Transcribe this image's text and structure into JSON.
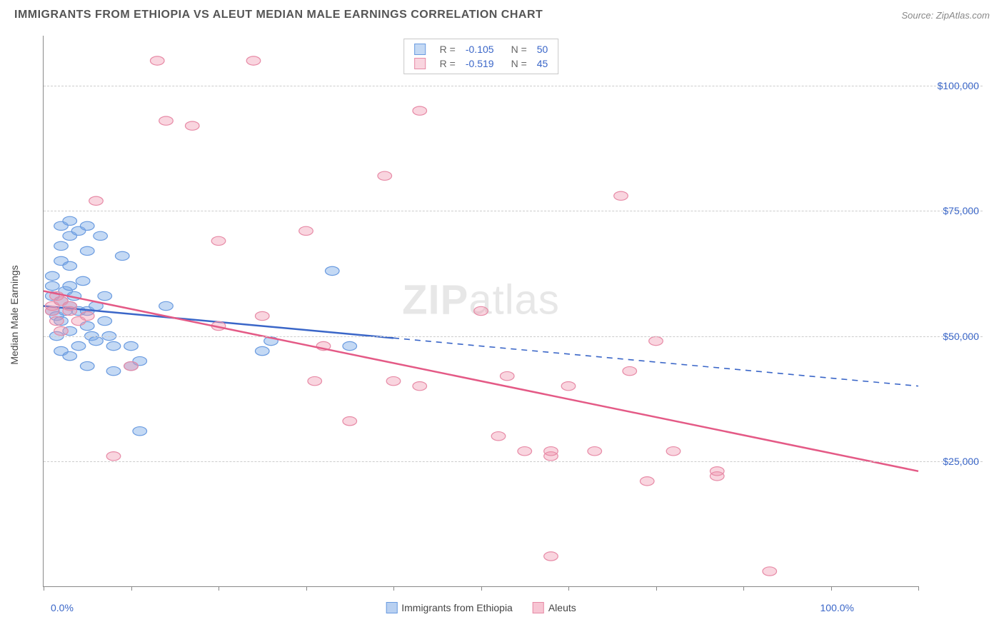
{
  "header": {
    "title": "IMMIGRANTS FROM ETHIOPIA VS ALEUT MEDIAN MALE EARNINGS CORRELATION CHART",
    "source_label": "Source: ",
    "source_name": "ZipAtlas.com"
  },
  "chart": {
    "type": "scatter",
    "ylabel": "Median Male Earnings",
    "xaxis": {
      "min": 0,
      "max": 100,
      "left_label": "0.0%",
      "right_label": "100.0%",
      "tick_positions": [
        0,
        10,
        20,
        30,
        40,
        50,
        60,
        70,
        80,
        90,
        100
      ]
    },
    "yaxis": {
      "min": 0,
      "max": 110000,
      "ticks": [
        {
          "value": 25000,
          "label": "$25,000"
        },
        {
          "value": 50000,
          "label": "$50,000"
        },
        {
          "value": 75000,
          "label": "$75,000"
        },
        {
          "value": 100000,
          "label": "$100,000"
        }
      ]
    },
    "grid_color": "#cccccc",
    "background_color": "#ffffff",
    "marker_radius": 8,
    "series": [
      {
        "name": "Immigrants from Ethiopia",
        "color_fill": "rgba(125,170,230,0.45)",
        "color_stroke": "#6a9be0",
        "line_color": "#3a66c8",
        "line_solid_until_x": 40,
        "R": "-0.105",
        "N": "50",
        "trend": {
          "y_at_x0": 56000,
          "y_at_x100": 40000
        },
        "points": [
          [
            1,
            55000
          ],
          [
            1,
            58000
          ],
          [
            1,
            60000
          ],
          [
            1,
            62000
          ],
          [
            1.5,
            54000
          ],
          [
            1.5,
            50000
          ],
          [
            2,
            72000
          ],
          [
            2,
            68000
          ],
          [
            2,
            65000
          ],
          [
            2,
            57000
          ],
          [
            2,
            53000
          ],
          [
            2,
            47000
          ],
          [
            2.5,
            55000
          ],
          [
            2.5,
            59000
          ],
          [
            3,
            73000
          ],
          [
            3,
            70000
          ],
          [
            3,
            64000
          ],
          [
            3,
            60000
          ],
          [
            3,
            56000
          ],
          [
            3,
            51000
          ],
          [
            3,
            46000
          ],
          [
            3.5,
            58000
          ],
          [
            4,
            71000
          ],
          [
            4,
            55000
          ],
          [
            4,
            48000
          ],
          [
            4.5,
            61000
          ],
          [
            5,
            72000
          ],
          [
            5,
            67000
          ],
          [
            5,
            55000
          ],
          [
            5,
            52000
          ],
          [
            5,
            44000
          ],
          [
            5.5,
            50000
          ],
          [
            6,
            56000
          ],
          [
            6,
            49000
          ],
          [
            6.5,
            70000
          ],
          [
            7,
            53000
          ],
          [
            7,
            58000
          ],
          [
            7.5,
            50000
          ],
          [
            8,
            48000
          ],
          [
            8,
            43000
          ],
          [
            9,
            66000
          ],
          [
            10,
            44000
          ],
          [
            10,
            48000
          ],
          [
            11,
            31000
          ],
          [
            11,
            45000
          ],
          [
            14,
            56000
          ],
          [
            25,
            47000
          ],
          [
            26,
            49000
          ],
          [
            33,
            63000
          ],
          [
            35,
            48000
          ]
        ]
      },
      {
        "name": "Aleuts",
        "color_fill": "rgba(240,150,175,0.40)",
        "color_stroke": "#e78aa6",
        "line_color": "#e45a86",
        "line_solid_until_x": 100,
        "R": "-0.519",
        "N": "45",
        "trend": {
          "y_at_x0": 59000,
          "y_at_x100": 23000
        },
        "points": [
          [
            1,
            55000
          ],
          [
            1,
            56000
          ],
          [
            1.5,
            58000
          ],
          [
            1.5,
            53000
          ],
          [
            2,
            57000
          ],
          [
            2,
            51000
          ],
          [
            3,
            56000
          ],
          [
            3,
            55000
          ],
          [
            4,
            53000
          ],
          [
            5,
            54000
          ],
          [
            6,
            77000
          ],
          [
            8,
            26000
          ],
          [
            10,
            44000
          ],
          [
            13,
            105000
          ],
          [
            14,
            93000
          ],
          [
            17,
            92000
          ],
          [
            20,
            69000
          ],
          [
            20,
            52000
          ],
          [
            24,
            105000
          ],
          [
            25,
            54000
          ],
          [
            30,
            71000
          ],
          [
            31,
            41000
          ],
          [
            32,
            48000
          ],
          [
            35,
            33000
          ],
          [
            39,
            82000
          ],
          [
            40,
            41000
          ],
          [
            43,
            95000
          ],
          [
            43,
            40000
          ],
          [
            50,
            55000
          ],
          [
            52,
            30000
          ],
          [
            53,
            42000
          ],
          [
            55,
            27000
          ],
          [
            58,
            26000
          ],
          [
            58,
            27000
          ],
          [
            60,
            40000
          ],
          [
            63,
            27000
          ],
          [
            66,
            78000
          ],
          [
            67,
            43000
          ],
          [
            69,
            21000
          ],
          [
            70,
            49000
          ],
          [
            72,
            27000
          ],
          [
            77,
            22000
          ],
          [
            77,
            23000
          ],
          [
            58,
            6000
          ],
          [
            83,
            3000
          ]
        ]
      }
    ],
    "bottom_legend": [
      {
        "label": "Immigrants from Ethiopia",
        "fill": "rgba(125,170,230,0.55)",
        "stroke": "#6a9be0"
      },
      {
        "label": "Aleuts",
        "fill": "rgba(240,150,175,0.55)",
        "stroke": "#e78aa6"
      }
    ],
    "watermark": {
      "bold": "ZIP",
      "rest": "atlas"
    }
  }
}
